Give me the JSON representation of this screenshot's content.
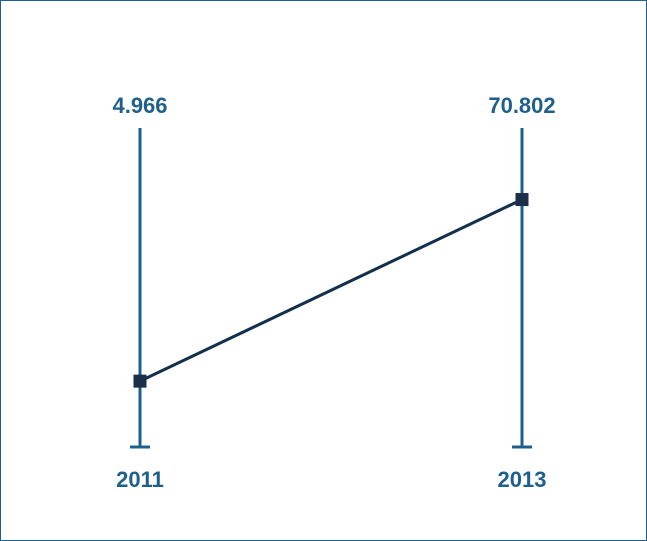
{
  "chart_data": {
    "type": "line",
    "categories": [
      "2011",
      "2013"
    ],
    "values": [
      4.966,
      70.802
    ],
    "value_labels": [
      "4.966",
      "70.802"
    ],
    "ylim": [
      -20,
      100
    ],
    "grid": false,
    "legend": "none"
  },
  "colors": {
    "axis": "#1f5f8b",
    "line": "#12304c",
    "marker": "#1c2f4a",
    "text": "#1f5f8b",
    "border": "#1f5f8b"
  }
}
